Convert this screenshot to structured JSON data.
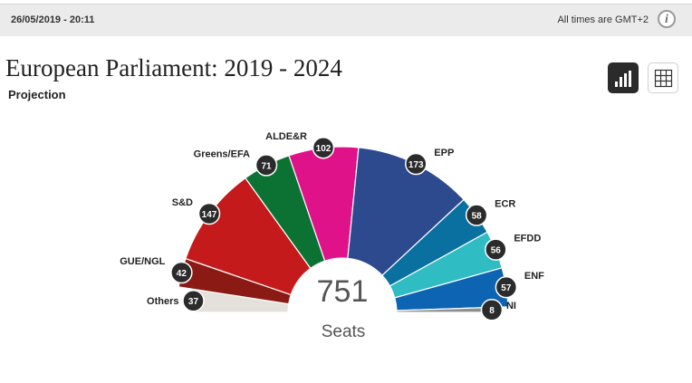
{
  "header": {
    "timestamp": "26/05/2019 - 20:11",
    "timezone_note": "All times are GMT+2",
    "info_icon": "i"
  },
  "title": "European Parliament: 2019 - 2024",
  "subtitle": "Projection",
  "view_toggle": {
    "chart_icon": "bar-chart-icon",
    "table_icon": "grid-icon"
  },
  "chart_data": {
    "type": "pie",
    "layout": "parliament-hemicycle",
    "total": 751,
    "total_label": "Seats",
    "series": [
      {
        "name": "Others",
        "value": 37,
        "color": "#e4e0dc"
      },
      {
        "name": "GUE/NGL",
        "value": 42,
        "color": "#8b1a15"
      },
      {
        "name": "S&D",
        "value": 147,
        "color": "#c41a1c"
      },
      {
        "name": "Greens/EFA",
        "value": 71,
        "color": "#0c7233"
      },
      {
        "name": "ALDE&R",
        "value": 102,
        "color": "#e0128a"
      },
      {
        "name": "EPP",
        "value": 173,
        "color": "#2d4a8e"
      },
      {
        "name": "ECR",
        "value": 58,
        "color": "#0a70a0"
      },
      {
        "name": "EFDD",
        "value": 56,
        "color": "#2fbcc2"
      },
      {
        "name": "ENF",
        "value": 57,
        "color": "#0d64b3"
      },
      {
        "name": "NI",
        "value": 8,
        "color": "#8f8f8f"
      }
    ]
  }
}
